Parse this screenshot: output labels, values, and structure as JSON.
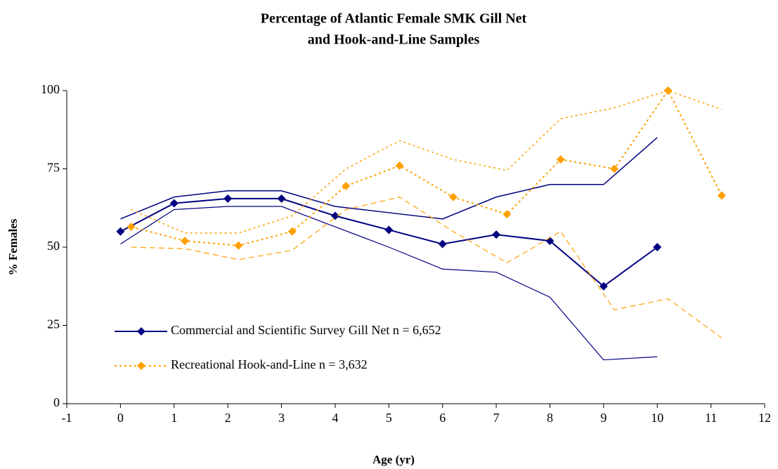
{
  "chart_data": {
    "type": "line",
    "title": [
      "Percentage of Atlantic Female SMK Gill Net",
      "and Hook-and-Line Samples"
    ],
    "x_label": "Age (yr)",
    "y_label": "% Females",
    "xlim": [
      -1,
      12
    ],
    "xticks": [
      -1,
      0,
      1,
      2,
      3,
      4,
      5,
      6,
      7,
      8,
      9,
      10,
      11,
      12
    ],
    "ylim": [
      0,
      100
    ],
    "yticks": [
      0,
      25,
      50,
      75,
      100
    ],
    "grid": false,
    "legend": "lower left",
    "series": [
      {
        "name": "Commercial and Scientific Survey Gill Net n = 6,652",
        "color": "#000080",
        "dash": "none",
        "x": [
          0,
          1,
          2,
          3,
          4,
          5,
          6,
          7,
          8,
          9,
          10
        ],
        "values": [
          55,
          64,
          65.5,
          65.5,
          60,
          55.5,
          51,
          54,
          52,
          37.5,
          50
        ],
        "upper": [
          59,
          66,
          68,
          68,
          63,
          61,
          59,
          66,
          70,
          70,
          85
        ],
        "lower": [
          51,
          62,
          63,
          63,
          56.5,
          50,
          43,
          42,
          34,
          14,
          15
        ],
        "upper_dash": "none",
        "lower_dash": "none"
      },
      {
        "name": "Recreational Hook-and-Line n = 3,632",
        "color": "#FFA000",
        "dash": "3,4",
        "x": [
          0.2,
          1.2,
          2.2,
          3.2,
          4.2,
          5.2,
          6.2,
          7.2,
          8.2,
          9.2,
          10.2,
          11.2
        ],
        "values": [
          56.5,
          52,
          50.5,
          55,
          69.5,
          76,
          66,
          60.5,
          78,
          75,
          100,
          66.5
        ],
        "upper": [
          62,
          54.5,
          54.5,
          60,
          75,
          84,
          78,
          74.5,
          91,
          94.5,
          100,
          94
        ],
        "lower": [
          50,
          49.5,
          46,
          49,
          62,
          66,
          55,
          45,
          55,
          30,
          33.5,
          21
        ],
        "upper_dash": "3,4",
        "lower_dash": "8,5"
      }
    ]
  }
}
